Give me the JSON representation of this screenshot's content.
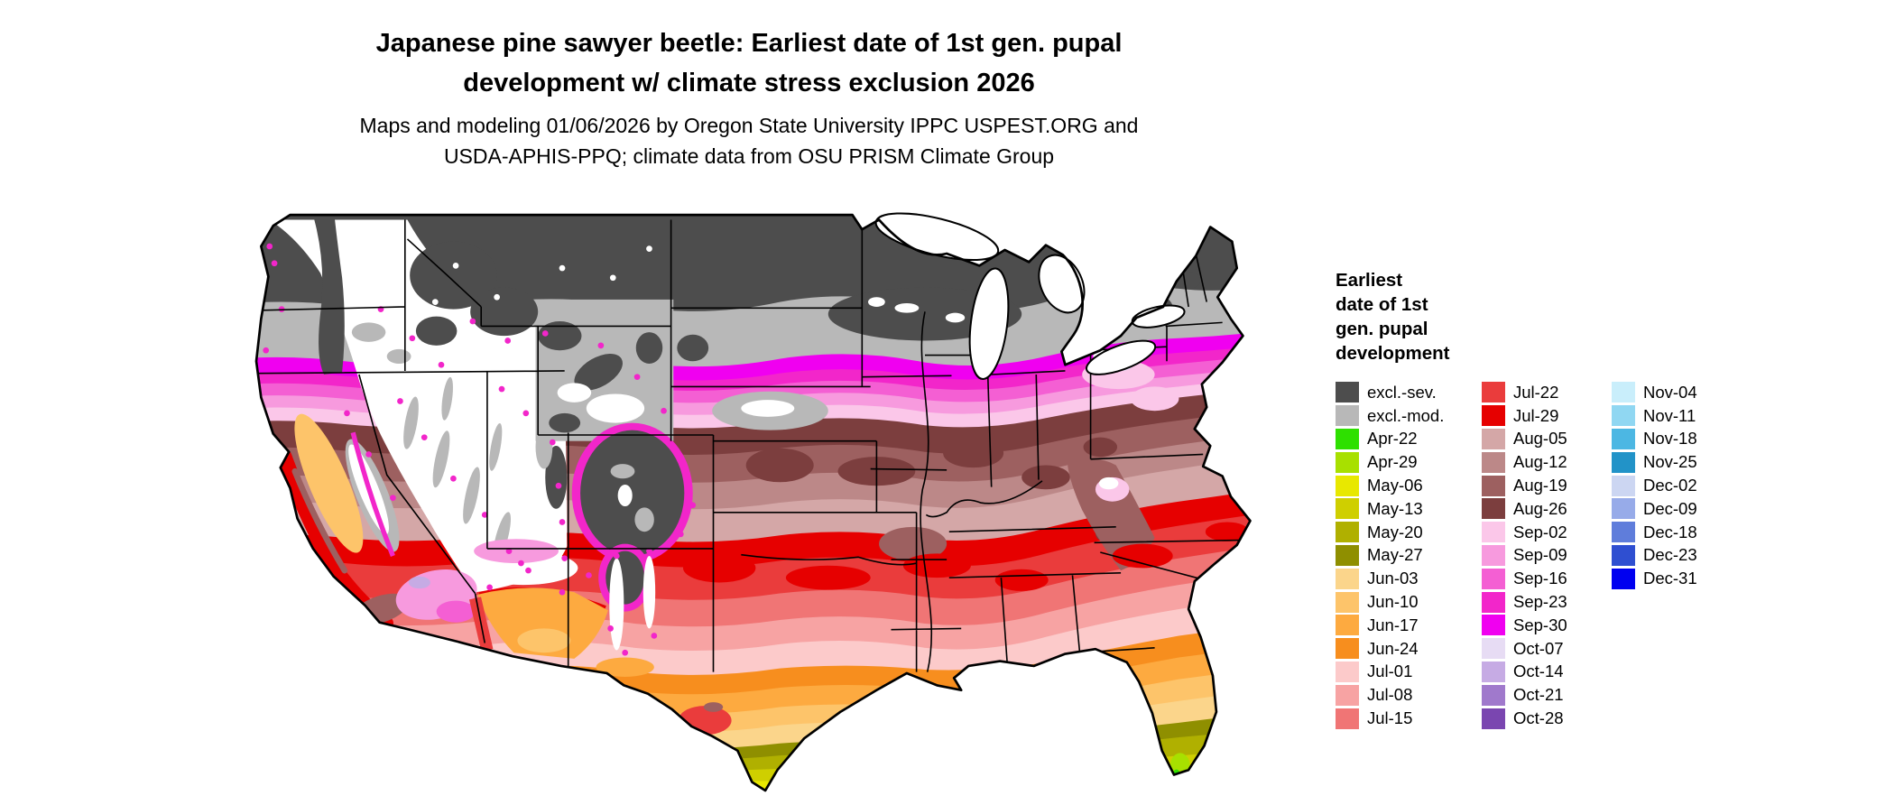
{
  "title": "Japanese pine sawyer beetle: Earliest date of 1st gen. pupal\ndevelopment w/ climate stress exclusion 2026",
  "subtitle": "Maps and modeling 01/06/2026 by Oregon State University IPPC USPEST.ORG and\nUSDA-APHIS-PPQ; climate data from OSU PRISM Climate Group",
  "legend": {
    "title": "Earliest\ndate of 1st\ngen. pupal\ndevelopment",
    "columns": [
      [
        {
          "label": "excl.-sev.",
          "color_key": "excl_sev"
        },
        {
          "label": "excl.-mod.",
          "color_key": "excl_mod"
        },
        {
          "label": "Apr-22",
          "color_key": "apr22"
        },
        {
          "label": "Apr-29",
          "color_key": "apr29"
        },
        {
          "label": "May-06",
          "color_key": "may06"
        },
        {
          "label": "May-13",
          "color_key": "may13"
        },
        {
          "label": "May-20",
          "color_key": "may20"
        },
        {
          "label": "May-27",
          "color_key": "may27"
        },
        {
          "label": "Jun-03",
          "color_key": "jun03"
        },
        {
          "label": "Jun-10",
          "color_key": "jun10"
        },
        {
          "label": "Jun-17",
          "color_key": "jun17"
        },
        {
          "label": "Jun-24",
          "color_key": "jun24"
        },
        {
          "label": "Jul-01",
          "color_key": "jul01"
        },
        {
          "label": "Jul-08",
          "color_key": "jul08"
        },
        {
          "label": "Jul-15",
          "color_key": "jul15"
        }
      ],
      [
        {
          "label": "Jul-22",
          "color_key": "jul22"
        },
        {
          "label": "Jul-29",
          "color_key": "jul29"
        },
        {
          "label": "Aug-05",
          "color_key": "aug05"
        },
        {
          "label": "Aug-12",
          "color_key": "aug12"
        },
        {
          "label": "Aug-19",
          "color_key": "aug19"
        },
        {
          "label": "Aug-26",
          "color_key": "aug26"
        },
        {
          "label": "Sep-02",
          "color_key": "sep02"
        },
        {
          "label": "Sep-09",
          "color_key": "sep09"
        },
        {
          "label": "Sep-16",
          "color_key": "sep16"
        },
        {
          "label": "Sep-23",
          "color_key": "sep23"
        },
        {
          "label": "Sep-30",
          "color_key": "sep30"
        },
        {
          "label": "Oct-07",
          "color_key": "oct07"
        },
        {
          "label": "Oct-14",
          "color_key": "oct14"
        },
        {
          "label": "Oct-21",
          "color_key": "oct21"
        },
        {
          "label": "Oct-28",
          "color_key": "oct28"
        }
      ],
      [
        {
          "label": "Nov-04",
          "color_key": "nov04"
        },
        {
          "label": "Nov-11",
          "color_key": "nov11"
        },
        {
          "label": "Nov-18",
          "color_key": "nov18"
        },
        {
          "label": "Nov-25",
          "color_key": "nov25"
        },
        {
          "label": "Dec-02",
          "color_key": "dec02"
        },
        {
          "label": "Dec-09",
          "color_key": "dec09"
        },
        {
          "label": "Dec-18",
          "color_key": "dec18"
        },
        {
          "label": "Dec-23",
          "color_key": "dec23"
        },
        {
          "label": "Dec-31",
          "color_key": "dec31"
        }
      ]
    ]
  },
  "map_colors": {
    "excl_sev": "#4d4d4d",
    "excl_mod": "#b8b8b8",
    "apr22": "#2ee000",
    "apr29": "#a8e000",
    "may06": "#e8e800",
    "may13": "#cfcf00",
    "may20": "#b0b000",
    "may27": "#8f8f00",
    "jun03": "#fbd58b",
    "jun10": "#fdc46a",
    "jun17": "#fdaa40",
    "jun24": "#f78e1e",
    "jul01": "#fccaca",
    "jul08": "#f7a3a3",
    "jul15": "#f07575",
    "jul22": "#ea3c3c",
    "jul29": "#e60000",
    "aug05": "#d4a7a7",
    "aug12": "#bc8888",
    "aug19": "#9d6060",
    "aug26": "#7c3e3e",
    "sep02": "#fbc7e9",
    "sep09": "#f79ade",
    "sep16": "#f45fd3",
    "sep23": "#f226ca",
    "sep30": "#f000f0",
    "oct07": "#e7dcf4",
    "oct14": "#c6abe4",
    "oct21": "#a079cc",
    "oct28": "#7a46b0",
    "nov04": "#c9eefb",
    "nov11": "#90d7f2",
    "nov18": "#4cb7e3",
    "nov25": "#2293c8",
    "dec02": "#ccd6f2",
    "dec09": "#97abe9",
    "dec18": "#5f7ddb",
    "dec23": "#2f4fd1",
    "dec31": "#0000f0",
    "water": "#ffffff",
    "nodata": "#ffffff"
  }
}
